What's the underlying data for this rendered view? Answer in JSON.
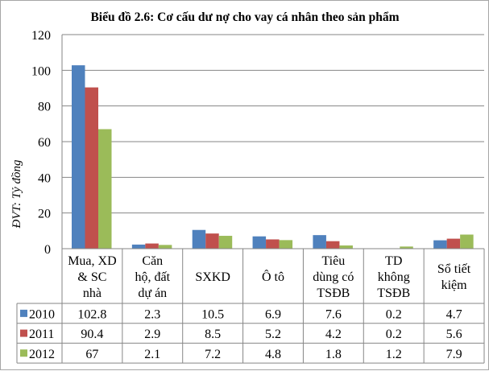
{
  "chart_data": {
    "type": "bar",
    "title": "Biểu đồ 2.6: Cơ cấu dư nợ cho vay cá nhân theo sản phẩm",
    "ylabel": "ĐVT: Tỷ đồng",
    "xlabel": "",
    "ylim": [
      0,
      120
    ],
    "yticks": [
      0,
      20,
      40,
      60,
      80,
      100,
      120
    ],
    "grid": true,
    "legend": "data-table",
    "categories": [
      [
        "Mua, XD",
        "& SC",
        "nhà"
      ],
      [
        "Căn",
        "hộ, đất",
        "dự án"
      ],
      [
        "SXKD"
      ],
      [
        "Ô tô"
      ],
      [
        "Tiêu",
        "dùng có",
        "TSĐB"
      ],
      [
        "TD",
        "không",
        "TSĐB"
      ],
      [
        "Sổ tiết",
        "kiệm"
      ]
    ],
    "series": [
      {
        "name": "2010",
        "color": "#4f81bd",
        "values": [
          102.8,
          2.3,
          10.5,
          6.9,
          7.6,
          0.2,
          4.7
        ]
      },
      {
        "name": "2011",
        "color": "#c0504d",
        "values": [
          90.4,
          2.9,
          8.5,
          5.2,
          4.2,
          0.2,
          5.6
        ]
      },
      {
        "name": "2012",
        "color": "#9bbb59",
        "values": [
          67,
          2.1,
          7.2,
          4.8,
          1.8,
          1.2,
          7.9
        ]
      }
    ]
  }
}
